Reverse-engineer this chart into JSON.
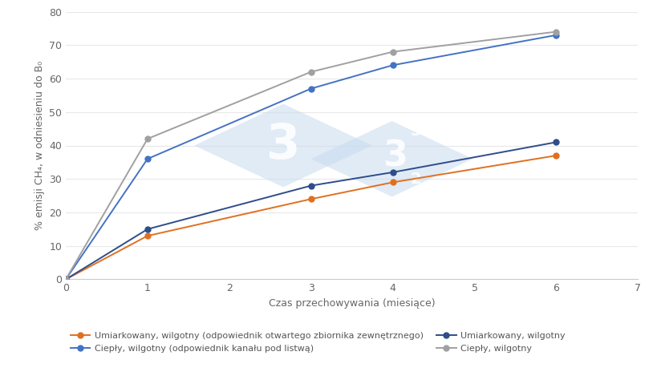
{
  "x": [
    0,
    1,
    3,
    4,
    6
  ],
  "series": [
    {
      "label": "Umiarkowany, wilgotny (odpowiednik otwartego zbiornika zewnętrznego)",
      "values": [
        0,
        13,
        24,
        29,
        37
      ],
      "color": "#E07020",
      "marker": "o",
      "linewidth": 1.4,
      "markersize": 5
    },
    {
      "label": "Ciepły, wilgotny (odpowiednik kanału pod listwą)",
      "values": [
        0,
        36,
        57,
        64,
        73
      ],
      "color": "#4472C4",
      "marker": "o",
      "linewidth": 1.4,
      "markersize": 5
    },
    {
      "label": "Umiarkowany, wilgotny",
      "values": [
        0,
        15,
        28,
        32,
        41
      ],
      "color": "#2E4D8A",
      "marker": "o",
      "linewidth": 1.4,
      "markersize": 5
    },
    {
      "label": "Ciepły, wilgotny",
      "values": [
        0,
        42,
        62,
        68,
        74
      ],
      "color": "#A0A0A0",
      "marker": "o",
      "linewidth": 1.4,
      "markersize": 5
    }
  ],
  "xlabel": "Czas przechowywania (miesiące)",
  "ylabel": "% emisji CH₄, w odniesieniu do B₀",
  "xlim": [
    0,
    7
  ],
  "ylim": [
    0,
    80
  ],
  "xticks": [
    0,
    1,
    2,
    3,
    4,
    5,
    6,
    7
  ],
  "yticks": [
    0,
    10,
    20,
    30,
    40,
    50,
    60,
    70,
    80
  ],
  "background_color": "#FFFFFF",
  "axis_fontsize": 9,
  "tick_fontsize": 9,
  "legend_fontsize": 8,
  "wm_color": "#C8DCEF",
  "wm_alpha": 0.55
}
